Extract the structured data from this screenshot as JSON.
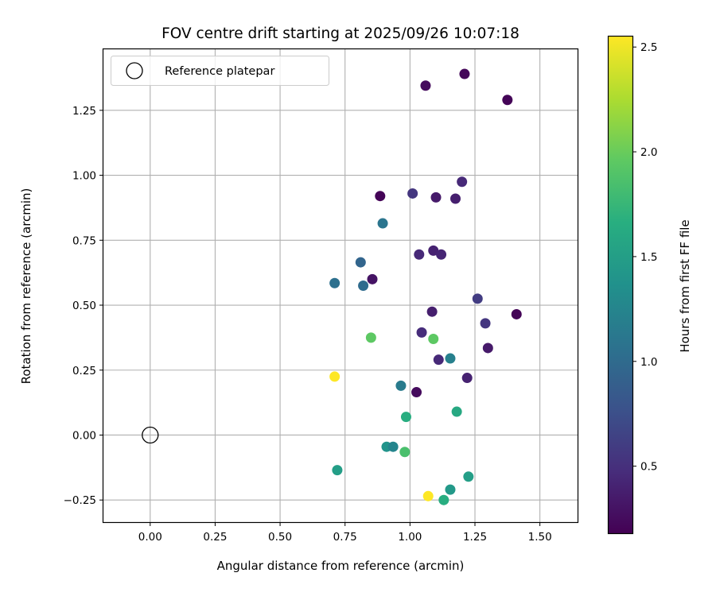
{
  "chart_data": {
    "type": "scatter",
    "title": "FOV centre drift starting at 2025/09/26 10:07:18",
    "xlabel": "Angular distance from reference (arcmin)",
    "ylabel": "Rotation from reference (arcmin)",
    "xlim": [
      -0.18,
      1.645
    ],
    "ylim": [
      -0.335,
      1.485
    ],
    "xticks": [
      0.0,
      0.25,
      0.5,
      0.75,
      1.0,
      1.25,
      1.5
    ],
    "xtick_labels": [
      "0.00",
      "0.25",
      "0.50",
      "0.75",
      "1.00",
      "1.25",
      "1.50"
    ],
    "yticks": [
      -0.25,
      0.0,
      0.25,
      0.5,
      0.75,
      1.0,
      1.25
    ],
    "ytick_labels": [
      "−0.25",
      "0.00",
      "0.25",
      "0.50",
      "0.75",
      "1.00",
      "1.25"
    ],
    "grid": true,
    "legend": {
      "position": "top-left",
      "label": "Reference platepar"
    },
    "reference_point": {
      "x": 0.0,
      "y": 0.0
    },
    "colorbar": {
      "label": "Hours from first FF file",
      "range": [
        0.18,
        2.55
      ],
      "ticks": [
        0.5,
        1.0,
        1.5,
        2.0,
        2.5
      ],
      "tick_labels": [
        "0.5",
        "1.0",
        "1.5",
        "2.0",
        "2.5"
      ]
    },
    "points": [
      {
        "x": 1.06,
        "y": 1.345,
        "hours": 0.25
      },
      {
        "x": 1.21,
        "y": 1.39,
        "hours": 0.22
      },
      {
        "x": 1.375,
        "y": 1.29,
        "hours": 0.2
      },
      {
        "x": 0.885,
        "y": 0.92,
        "hours": 0.2
      },
      {
        "x": 1.01,
        "y": 0.93,
        "hours": 0.55
      },
      {
        "x": 1.1,
        "y": 0.915,
        "hours": 0.35
      },
      {
        "x": 1.175,
        "y": 0.91,
        "hours": 0.38
      },
      {
        "x": 1.2,
        "y": 0.975,
        "hours": 0.45
      },
      {
        "x": 0.895,
        "y": 0.815,
        "hours": 1.1
      },
      {
        "x": 1.035,
        "y": 0.695,
        "hours": 0.45
      },
      {
        "x": 1.09,
        "y": 0.71,
        "hours": 0.4
      },
      {
        "x": 1.12,
        "y": 0.695,
        "hours": 0.42
      },
      {
        "x": 0.81,
        "y": 0.665,
        "hours": 0.95
      },
      {
        "x": 0.71,
        "y": 0.585,
        "hours": 1.05
      },
      {
        "x": 0.82,
        "y": 0.575,
        "hours": 1.0
      },
      {
        "x": 0.855,
        "y": 0.6,
        "hours": 0.3
      },
      {
        "x": 1.26,
        "y": 0.525,
        "hours": 0.6
      },
      {
        "x": 1.085,
        "y": 0.475,
        "hours": 0.38
      },
      {
        "x": 1.41,
        "y": 0.465,
        "hours": 0.2
      },
      {
        "x": 1.29,
        "y": 0.43,
        "hours": 0.55
      },
      {
        "x": 1.045,
        "y": 0.395,
        "hours": 0.48
      },
      {
        "x": 0.85,
        "y": 0.375,
        "hours": 1.95
      },
      {
        "x": 1.09,
        "y": 0.37,
        "hours": 1.95
      },
      {
        "x": 1.3,
        "y": 0.335,
        "hours": 0.35
      },
      {
        "x": 1.155,
        "y": 0.295,
        "hours": 1.2
      },
      {
        "x": 1.11,
        "y": 0.29,
        "hours": 0.45
      },
      {
        "x": 1.22,
        "y": 0.22,
        "hours": 0.4
      },
      {
        "x": 0.71,
        "y": 0.225,
        "hours": 2.55
      },
      {
        "x": 0.965,
        "y": 0.19,
        "hours": 1.15
      },
      {
        "x": 1.025,
        "y": 0.165,
        "hours": 0.25
      },
      {
        "x": 1.18,
        "y": 0.09,
        "hours": 1.6
      },
      {
        "x": 0.985,
        "y": 0.07,
        "hours": 1.65
      },
      {
        "x": 0.91,
        "y": -0.045,
        "hours": 1.4
      },
      {
        "x": 0.935,
        "y": -0.045,
        "hours": 1.25
      },
      {
        "x": 0.98,
        "y": -0.065,
        "hours": 1.85
      },
      {
        "x": 0.72,
        "y": -0.135,
        "hours": 1.5
      },
      {
        "x": 1.225,
        "y": -0.16,
        "hours": 1.5
      },
      {
        "x": 1.155,
        "y": -0.21,
        "hours": 1.45
      },
      {
        "x": 1.07,
        "y": -0.235,
        "hours": 2.55
      },
      {
        "x": 1.13,
        "y": -0.25,
        "hours": 1.65
      }
    ]
  }
}
